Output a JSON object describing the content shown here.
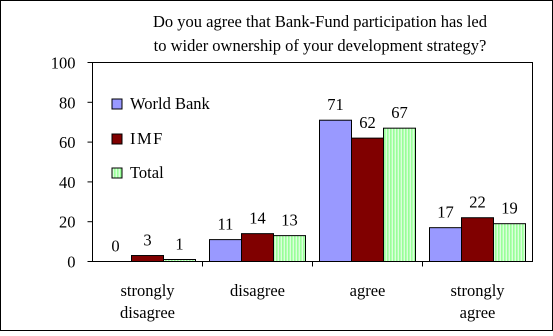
{
  "chart_data": {
    "type": "bar",
    "title": "Do you agree that Bank-Fund participation has led to wider ownership of your development strategy?",
    "title_lines": [
      "Do you agree that Bank-Fund participation has led",
      "to wider ownership of your development strategy?"
    ],
    "categories": [
      "strongly disagree",
      "disagree",
      "agree",
      "strongly agree"
    ],
    "category_label_lines": [
      [
        "strongly",
        "disagree"
      ],
      [
        "disagree"
      ],
      [
        "agree"
      ],
      [
        "strongly",
        "agree"
      ]
    ],
    "series": [
      {
        "name": "World Bank",
        "values": [
          0,
          11,
          71,
          17
        ],
        "color": "#9999FF",
        "pattern": "none"
      },
      {
        "name": "IMF",
        "values": [
          3,
          14,
          62,
          22
        ],
        "color": "#800000",
        "pattern": "none"
      },
      {
        "name": "Total",
        "values": [
          1,
          13,
          67,
          19
        ],
        "color": "#99FF99",
        "pattern": "vertical-stripes"
      }
    ],
    "ylim": [
      0,
      100
    ],
    "yticks": [
      0,
      20,
      40,
      60,
      80,
      100
    ],
    "xlabel": "",
    "ylabel": "",
    "grid": false,
    "legend_position": "upper-left inside plot",
    "data_labels": true
  }
}
